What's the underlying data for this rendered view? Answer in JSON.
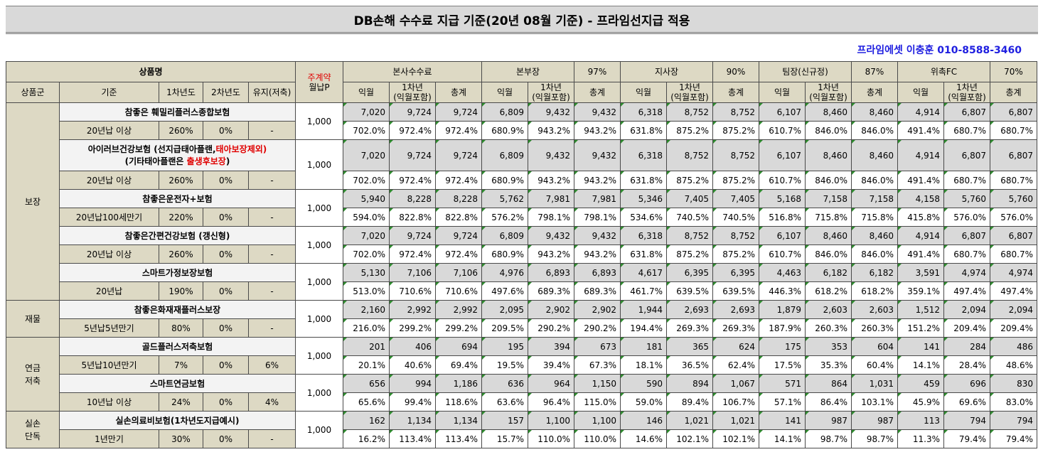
{
  "title": "DB손해 수수료 지급 기준(20년 08월 기준) - 프라임선지급 적용",
  "agent": "프라임에셋 이충훈 010-8588-3460",
  "header": {
    "product_name": "상품명",
    "weekly": "주계약",
    "monthly": "월납P",
    "cols": [
      "상품군",
      "기준",
      "1차년도",
      "2차년도",
      "유지(저축)"
    ],
    "sections": [
      {
        "name": "본사수수료",
        "pct": ""
      },
      {
        "name": "본부장",
        "pct": "97%"
      },
      {
        "name": "지사장",
        "pct": "90%"
      },
      {
        "name": "팀장(신규정)",
        "pct": "87%"
      },
      {
        "name": "위촉FC",
        "pct": "70%"
      }
    ],
    "sub": [
      "익월",
      "1차년\n(익월포함)",
      "총계"
    ]
  },
  "groups": [
    {
      "name": "보장",
      "rows": 10
    },
    {
      "name": "재물",
      "rows": 2
    },
    {
      "name": "연금\n저축",
      "rows": 4
    },
    {
      "name": "실손\n단독",
      "rows": 2
    }
  ],
  "products": [
    {
      "name": "참좋은 훼밀리플러스종합보험",
      "basis": "20년납 이상",
      "y1": "260%",
      "y2": "0%",
      "keep": "-",
      "p": "1,000",
      "nums": [
        "7,020",
        "9,724",
        "9,724",
        "6,809",
        "9,432",
        "9,432",
        "6,318",
        "8,752",
        "8,752",
        "6,107",
        "8,460",
        "8,460",
        "4,914",
        "6,807",
        "6,807"
      ],
      "pcts": [
        "702.0%",
        "972.4%",
        "972.4%",
        "680.9%",
        "943.2%",
        "943.2%",
        "631.8%",
        "875.2%",
        "875.2%",
        "610.7%",
        "846.0%",
        "846.0%",
        "491.4%",
        "680.7%",
        "680.7%"
      ]
    },
    {
      "name": "아이러브건강보험 (선지급태아플랜,",
      "name_red": "태아보장제외)",
      "name2": "(기타태아플랜은 ",
      "name2_red": "출생후보장",
      "name2_end": ")",
      "basis": "20년납 이상",
      "y1": "260%",
      "y2": "0%",
      "keep": "-",
      "p": "1,000",
      "nums": [
        "7,020",
        "9,724",
        "9,724",
        "6,809",
        "9,432",
        "9,432",
        "6,318",
        "8,752",
        "8,752",
        "6,107",
        "8,460",
        "8,460",
        "4,914",
        "6,807",
        "6,807"
      ],
      "pcts": [
        "702.0%",
        "972.4%",
        "972.4%",
        "680.9%",
        "943.2%",
        "943.2%",
        "631.8%",
        "875.2%",
        "875.2%",
        "610.7%",
        "846.0%",
        "846.0%",
        "491.4%",
        "680.7%",
        "680.7%"
      ]
    },
    {
      "name": "참좋은운전자+보험",
      "basis": "20년납100세만기",
      "y1": "220%",
      "y2": "0%",
      "keep": "-",
      "p": "1,000",
      "nums": [
        "5,940",
        "8,228",
        "8,228",
        "5,762",
        "7,981",
        "7,981",
        "5,346",
        "7,405",
        "7,405",
        "5,168",
        "7,158",
        "7,158",
        "4,158",
        "5,760",
        "5,760"
      ],
      "pcts": [
        "594.0%",
        "822.8%",
        "822.8%",
        "576.2%",
        "798.1%",
        "798.1%",
        "534.6%",
        "740.5%",
        "740.5%",
        "516.8%",
        "715.8%",
        "715.8%",
        "415.8%",
        "576.0%",
        "576.0%"
      ]
    },
    {
      "name": "참좋은간편건강보험 (갱신형)",
      "basis": "20년납 이상",
      "y1": "260%",
      "y2": "0%",
      "keep": "-",
      "p": "1,000",
      "nums": [
        "7,020",
        "9,724",
        "9,724",
        "6,809",
        "9,432",
        "9,432",
        "6,318",
        "8,752",
        "8,752",
        "6,107",
        "8,460",
        "8,460",
        "4,914",
        "6,807",
        "6,807"
      ],
      "pcts": [
        "702.0%",
        "972.4%",
        "972.4%",
        "680.9%",
        "943.2%",
        "943.2%",
        "631.8%",
        "875.2%",
        "875.2%",
        "610.7%",
        "846.0%",
        "846.0%",
        "491.4%",
        "680.7%",
        "680.7%"
      ]
    },
    {
      "name": "스마트가정보장보험",
      "basis": "20년납",
      "y1": "190%",
      "y2": "0%",
      "keep": "-",
      "p": "1,000",
      "nums": [
        "5,130",
        "7,106",
        "7,106",
        "4,976",
        "6,893",
        "6,893",
        "4,617",
        "6,395",
        "6,395",
        "4,463",
        "6,182",
        "6,182",
        "3,591",
        "4,974",
        "4,974"
      ],
      "pcts": [
        "513.0%",
        "710.6%",
        "710.6%",
        "497.6%",
        "689.3%",
        "689.3%",
        "461.7%",
        "639.5%",
        "639.5%",
        "446.3%",
        "618.2%",
        "618.2%",
        "359.1%",
        "497.4%",
        "497.4%"
      ]
    },
    {
      "name": "참좋은화재재플러스보장",
      "basis": "5년납5년만기",
      "y1": "80%",
      "y2": "0%",
      "keep": "-",
      "p": "1,000",
      "nums": [
        "2,160",
        "2,992",
        "2,992",
        "2,095",
        "2,902",
        "2,902",
        "1,944",
        "2,693",
        "2,693",
        "1,879",
        "2,603",
        "2,603",
        "1,512",
        "2,094",
        "2,094"
      ],
      "pcts": [
        "216.0%",
        "299.2%",
        "299.2%",
        "209.5%",
        "290.2%",
        "290.2%",
        "194.4%",
        "269.3%",
        "269.3%",
        "187.9%",
        "260.3%",
        "260.3%",
        "151.2%",
        "209.4%",
        "209.4%"
      ]
    },
    {
      "name": "골드플러스저축보험",
      "basis": "5년납10년만기",
      "y1": "7%",
      "y2": "0%",
      "keep": "6%",
      "p": "1,000",
      "nums": [
        "201",
        "406",
        "694",
        "195",
        "394",
        "673",
        "181",
        "365",
        "624",
        "175",
        "353",
        "604",
        "141",
        "284",
        "486"
      ],
      "pcts": [
        "20.1%",
        "40.6%",
        "69.4%",
        "19.5%",
        "39.4%",
        "67.3%",
        "18.1%",
        "36.5%",
        "62.4%",
        "17.5%",
        "35.3%",
        "60.4%",
        "14.1%",
        "28.4%",
        "48.6%"
      ]
    },
    {
      "name": "스마트연금보험",
      "basis": "10년납 이상",
      "y1": "24%",
      "y2": "0%",
      "keep": "4%",
      "p": "1,000",
      "nums": [
        "656",
        "994",
        "1,186",
        "636",
        "964",
        "1,150",
        "590",
        "894",
        "1,067",
        "571",
        "864",
        "1,031",
        "459",
        "696",
        "830"
      ],
      "pcts": [
        "65.6%",
        "99.4%",
        "118.6%",
        "63.6%",
        "96.4%",
        "115.0%",
        "59.0%",
        "89.4%",
        "106.7%",
        "57.1%",
        "86.4%",
        "103.1%",
        "45.9%",
        "69.6%",
        "83.0%"
      ]
    },
    {
      "name": "실손의료비보험(1차년도지급예시)",
      "basis": "1년만기",
      "y1": "30%",
      "y2": "0%",
      "keep": "-",
      "p": "1,000",
      "nums": [
        "162",
        "1,134",
        "1,134",
        "157",
        "1,100",
        "1,100",
        "146",
        "1,021",
        "1,021",
        "141",
        "987",
        "987",
        "113",
        "794",
        "794"
      ],
      "pcts": [
        "16.2%",
        "113.4%",
        "113.4%",
        "15.7%",
        "110.0%",
        "110.0%",
        "14.6%",
        "102.1%",
        "102.1%",
        "14.1%",
        "98.7%",
        "98.7%",
        "11.3%",
        "79.4%",
        "79.4%"
      ]
    }
  ]
}
